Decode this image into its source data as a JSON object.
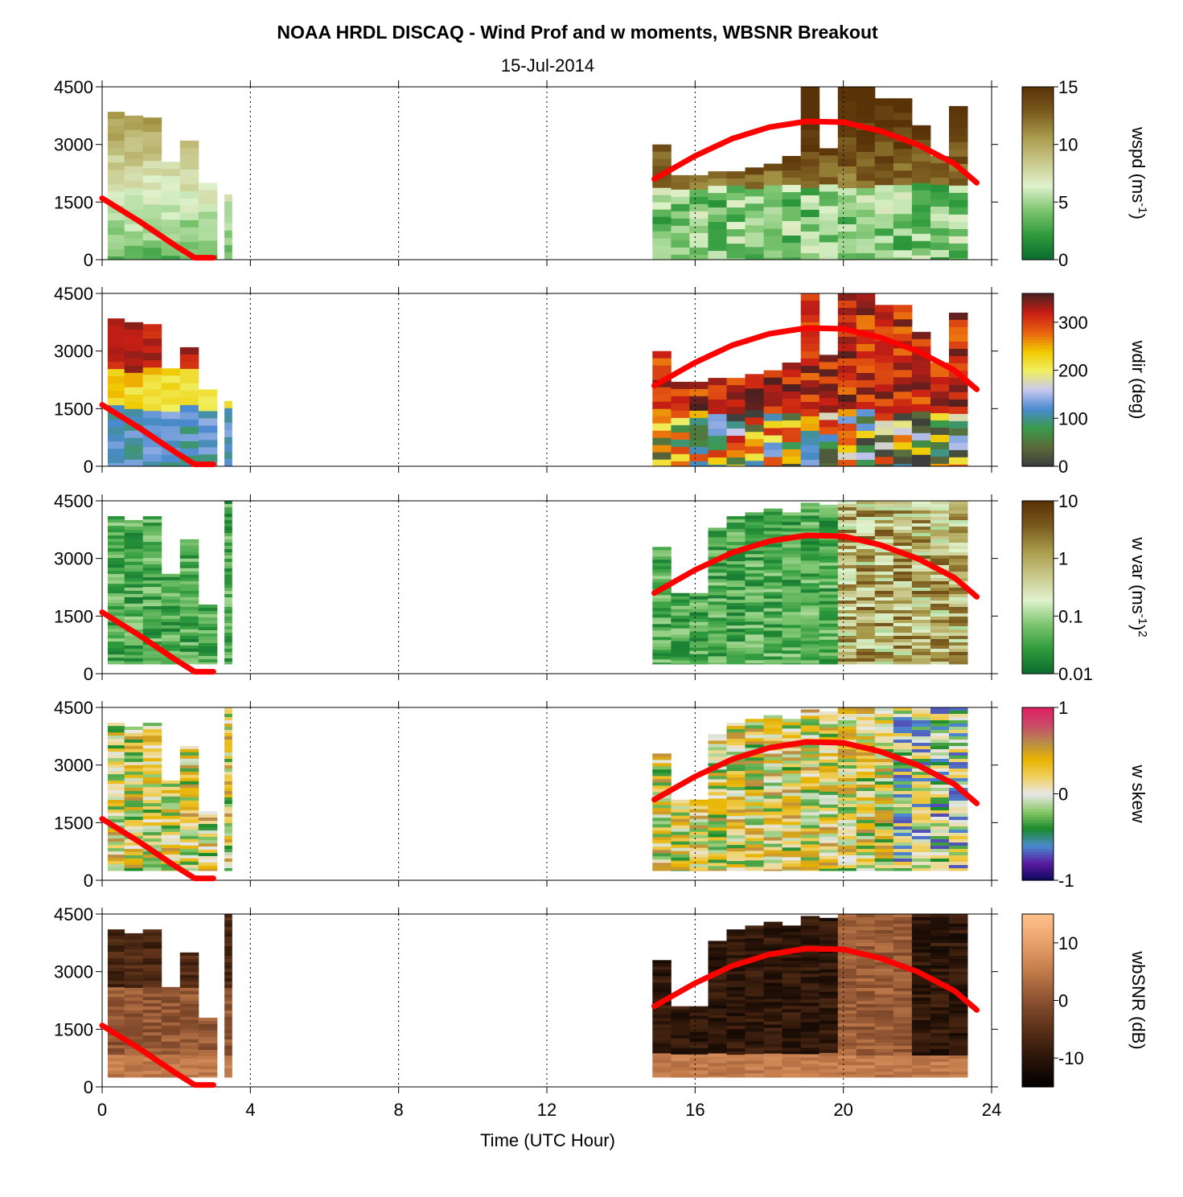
{
  "figure": {
    "title": "NOAA HRDL DISCAQ - Wind Prof and w moments, WBSNR Breakout",
    "date": "15-Jul-2014",
    "xlabel": "Time (UTC Hour)",
    "xticks": [
      "0",
      "4",
      "8",
      "12",
      "16",
      "20",
      "24"
    ]
  },
  "panels": [
    {
      "id": "wspd",
      "yticks": [
        "4500",
        "3000",
        "1500",
        "0"
      ],
      "colorbar_label": "wspd (ms",
      "colorbar_label_sup": "-1",
      "colorbar_label_tail": ")",
      "colorbar_ticks": [
        "15",
        "10",
        "5",
        "0"
      ],
      "colormap": [
        "#0b6b2e",
        "#2e9a3c",
        "#7cc46f",
        "#dff2cc",
        "#c8c78a",
        "#a89a4a",
        "#7a5a1e",
        "#5a3208"
      ]
    },
    {
      "id": "wdir",
      "yticks": [
        "4500",
        "3000",
        "1500",
        "0"
      ],
      "colorbar_label": "wdir (deg)",
      "colorbar_ticks": [
        "300",
        "200",
        "100",
        "0"
      ],
      "colormap": [
        "#3c3c3c",
        "#5a6a3a",
        "#3a9a4a",
        "#4a8ad0",
        "#c8c8f0",
        "#f0f060",
        "#f0c800",
        "#e86010",
        "#c81e14",
        "#4a2020"
      ]
    },
    {
      "id": "wvar",
      "yticks": [
        "4500",
        "3000",
        "1500",
        "0"
      ],
      "colorbar_label": "w var (ms",
      "colorbar_label_sup": "-1",
      "colorbar_label_tail": ")",
      "colorbar_label_sup2": "2",
      "colorbar_ticks": [
        "10",
        "1",
        "0.1",
        "0.01"
      ],
      "colormap": [
        "#0b6b2e",
        "#2e9a3c",
        "#7cc46f",
        "#dff2cc",
        "#c8c78a",
        "#a89a4a",
        "#7a5a1e",
        "#5a3208"
      ]
    },
    {
      "id": "wskew",
      "yticks": [
        "4500",
        "3000",
        "1500",
        "0"
      ],
      "colorbar_label": "w skew",
      "colorbar_ticks": [
        "1",
        "0",
        "-1"
      ],
      "colormap": [
        "#0a0a5a",
        "#5a1aa0",
        "#4a8ad0",
        "#1a8a2a",
        "#8ac86a",
        "#e8e8e8",
        "#f0d060",
        "#e8b400",
        "#b88a4a",
        "#c84a6a",
        "#e02060"
      ]
    },
    {
      "id": "wbsnr",
      "yticks": [
        "4500",
        "3000",
        "1500",
        "0"
      ],
      "colorbar_label": "wbSNR (dB)",
      "colorbar_ticks": [
        "10",
        "0",
        "-10"
      ],
      "colormap": [
        "#000000",
        "#2a1408",
        "#5a3018",
        "#8a5030",
        "#c07a4a",
        "#e8a06a",
        "#ffc08a"
      ]
    }
  ],
  "chart_data": [
    {
      "type": "heatmap",
      "name": "wspd",
      "x_range": [
        0,
        24
      ],
      "y_range": [
        0,
        4500
      ],
      "z_range": [
        0,
        15
      ],
      "coverage_hours": [
        [
          0.1,
          3.6
        ],
        [
          14.8,
          23.6
        ]
      ],
      "overlay_line": {
        "name": "",
        "color": "#ff0000",
        "x": [
          0,
          1,
          2,
          2.5,
          3.0,
          14.9,
          16,
          17,
          18,
          19,
          20,
          21,
          22,
          23,
          23.6
        ],
        "y": [
          1600,
          1000,
          350,
          50,
          50,
          2100,
          2700,
          3150,
          3450,
          3600,
          3580,
          3350,
          3000,
          2500,
          2000
        ]
      }
    },
    {
      "type": "heatmap",
      "name": "wdir",
      "x_range": [
        0,
        24
      ],
      "y_range": [
        0,
        4500
      ],
      "z_range": [
        0,
        360
      ],
      "overlay_line": {
        "name": "",
        "color": "#ff0000",
        "x": [
          0,
          1,
          2,
          2.5,
          3.0,
          14.9,
          16,
          17,
          18,
          19,
          20,
          21,
          22,
          23,
          23.6
        ],
        "y": [
          1600,
          1000,
          350,
          50,
          50,
          2100,
          2700,
          3150,
          3450,
          3600,
          3580,
          3350,
          3000,
          2500,
          2000
        ]
      }
    },
    {
      "type": "heatmap",
      "name": "w var",
      "x_range": [
        0,
        24
      ],
      "y_range": [
        0,
        4500
      ],
      "z_range": [
        0.01,
        10
      ],
      "z_scale": "log",
      "overlay_line": {
        "name": "",
        "color": "#ff0000",
        "x": [
          0,
          1,
          2,
          2.5,
          3.0,
          14.9,
          16,
          17,
          18,
          19,
          20,
          21,
          22,
          23,
          23.6
        ],
        "y": [
          1600,
          1000,
          350,
          50,
          50,
          2100,
          2700,
          3150,
          3450,
          3600,
          3580,
          3350,
          3000,
          2500,
          2000
        ]
      }
    },
    {
      "type": "heatmap",
      "name": "w skew",
      "x_range": [
        0,
        24
      ],
      "y_range": [
        0,
        4500
      ],
      "z_range": [
        -1,
        1
      ],
      "overlay_line": {
        "name": "",
        "color": "#ff0000",
        "x": [
          0,
          1,
          2,
          2.5,
          3.0,
          14.9,
          16,
          17,
          18,
          19,
          20,
          21,
          22,
          23,
          23.6
        ],
        "y": [
          1600,
          1000,
          350,
          50,
          50,
          2100,
          2700,
          3150,
          3450,
          3600,
          3580,
          3350,
          3000,
          2500,
          2000
        ]
      }
    },
    {
      "type": "heatmap",
      "name": "wbSNR",
      "x_range": [
        0,
        24
      ],
      "y_range": [
        0,
        4500
      ],
      "z_range": [
        -15,
        15
      ],
      "overlay_line": {
        "name": "",
        "color": "#ff0000",
        "x": [
          0,
          1,
          2,
          2.5,
          3.0,
          14.9,
          16,
          17,
          18,
          19,
          20,
          21,
          22,
          23,
          23.6
        ],
        "y": [
          1600,
          1000,
          350,
          50,
          50,
          2100,
          2700,
          3150,
          3450,
          3600,
          3580,
          3350,
          3000,
          2500,
          2000
        ]
      }
    }
  ]
}
